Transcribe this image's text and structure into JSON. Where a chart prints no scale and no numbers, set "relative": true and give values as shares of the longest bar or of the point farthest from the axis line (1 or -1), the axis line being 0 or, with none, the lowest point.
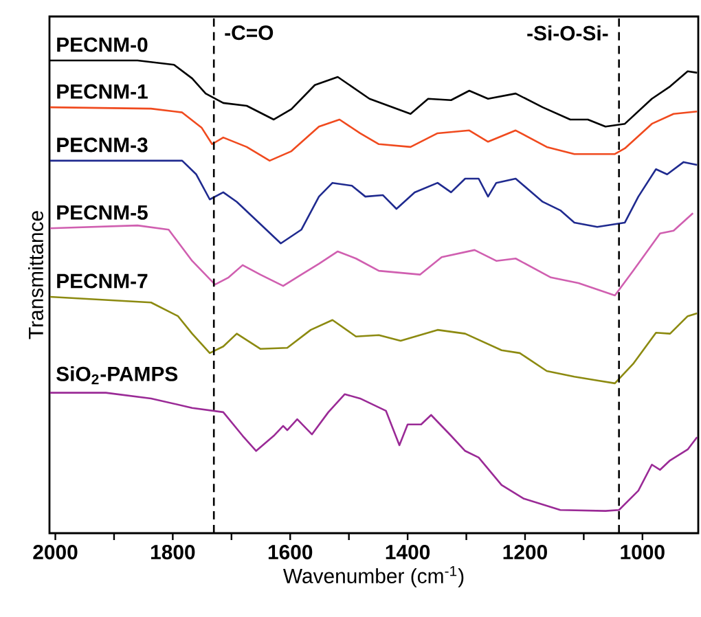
{
  "chart_data": {
    "type": "line",
    "relative": true,
    "xlabel": "Wavenumber (cm$^{-1}$)",
    "ylabel": "Transmittance",
    "xlim": [
      2010,
      905
    ],
    "xticks": [
      2000,
      {
        "value": 1900,
        "label": null
      },
      1800,
      {
        "value": 1700,
        "label": null
      },
      1600,
      {
        "value": 1500,
        "label": null
      },
      1400,
      {
        "value": 1300,
        "label": null
      },
      1200,
      {
        "value": 1100,
        "label": null
      },
      1000
    ],
    "ref_lines": [
      {
        "axis": "x",
        "value": 1730,
        "label": "-C=O",
        "line_style": "dashed",
        "color": "#000000"
      },
      {
        "axis": "x",
        "value": 1040,
        "label": "-Si-O-Si-",
        "line_style": "dashed",
        "color": "#000000"
      }
    ],
    "series": [
      {
        "name": "PECNM-0",
        "color": "#000000",
        "x": [
          2009,
          1860,
          1798,
          1767,
          1744,
          1714,
          1674,
          1628,
          1598,
          1558,
          1519,
          1465,
          1426,
          1395,
          1365,
          1326,
          1295,
          1263,
          1216,
          1170,
          1123,
          1093,
          1063,
          1030,
          984,
          953,
          923,
          907
        ],
        "values": [
          1.0,
          1.0,
          0.991,
          0.962,
          0.93,
          0.91,
          0.904,
          0.875,
          0.897,
          0.948,
          0.965,
          0.919,
          0.901,
          0.887,
          0.919,
          0.916,
          0.936,
          0.919,
          0.93,
          0.901,
          0.875,
          0.875,
          0.86,
          0.866,
          0.919,
          0.945,
          0.977,
          0.974
        ]
      },
      {
        "name": "PECNM-1",
        "color": "#f04a1e",
        "x": [
          2009,
          1837,
          1784,
          1751,
          1733,
          1714,
          1674,
          1635,
          1598,
          1551,
          1516,
          1481,
          1449,
          1395,
          1349,
          1295,
          1263,
          1216,
          1163,
          1116,
          1047,
          1030,
          984,
          947,
          907
        ],
        "values": [
          0.901,
          0.898,
          0.89,
          0.858,
          0.823,
          0.837,
          0.817,
          0.788,
          0.808,
          0.86,
          0.875,
          0.846,
          0.823,
          0.817,
          0.846,
          0.852,
          0.828,
          0.852,
          0.817,
          0.802,
          0.802,
          0.814,
          0.866,
          0.887,
          0.892
        ]
      },
      {
        "name": "PECNM-3",
        "color": "#1f2a8f",
        "x": [
          2009,
          1784,
          1760,
          1737,
          1714,
          1691,
          1651,
          1616,
          1581,
          1551,
          1528,
          1495,
          1472,
          1442,
          1419,
          1388,
          1349,
          1326,
          1302,
          1279,
          1263,
          1249,
          1216,
          1170,
          1140,
          1116,
          1077,
          1030,
          1007,
          977,
          958,
          930,
          907
        ],
        "values": [
          0.788,
          0.788,
          0.759,
          0.706,
          0.721,
          0.701,
          0.654,
          0.613,
          0.642,
          0.712,
          0.741,
          0.735,
          0.712,
          0.715,
          0.686,
          0.721,
          0.741,
          0.721,
          0.75,
          0.75,
          0.712,
          0.741,
          0.75,
          0.701,
          0.683,
          0.657,
          0.648,
          0.657,
          0.712,
          0.77,
          0.759,
          0.785,
          0.779
        ]
      },
      {
        "name": "PECNM-5",
        "color": "#d05fb0",
        "x": [
          2009,
          1860,
          1807,
          1767,
          1728,
          1705,
          1681,
          1651,
          1612,
          1581,
          1551,
          1519,
          1488,
          1449,
          1379,
          1342,
          1286,
          1249,
          1216,
          1156,
          1109,
          1047,
          1016,
          970,
          947,
          914
        ],
        "values": [
          0.645,
          0.651,
          0.642,
          0.576,
          0.526,
          0.541,
          0.567,
          0.547,
          0.523,
          0.547,
          0.57,
          0.596,
          0.581,
          0.555,
          0.547,
          0.584,
          0.599,
          0.576,
          0.581,
          0.541,
          0.529,
          0.503,
          0.555,
          0.634,
          0.64,
          0.677
        ]
      },
      {
        "name": "PECNM-7",
        "color": "#8c8a10",
        "x": [
          2009,
          1837,
          1791,
          1767,
          1737,
          1714,
          1691,
          1651,
          1605,
          1565,
          1528,
          1488,
          1449,
          1412,
          1349,
          1302,
          1240,
          1209,
          1163,
          1116,
          1077,
          1047,
          1016,
          977,
          953,
          923,
          907
        ],
        "values": [
          0.5,
          0.488,
          0.459,
          0.422,
          0.381,
          0.395,
          0.422,
          0.39,
          0.392,
          0.43,
          0.451,
          0.416,
          0.419,
          0.407,
          0.43,
          0.422,
          0.387,
          0.381,
          0.343,
          0.331,
          0.323,
          0.317,
          0.358,
          0.424,
          0.422,
          0.459,
          0.465
        ]
      },
      {
        "name": "SiO$_{2}$-PAMPS",
        "color": "#9a2a96",
        "x": [
          2009,
          1914,
          1837,
          1767,
          1714,
          1681,
          1658,
          1628,
          1612,
          1605,
          1588,
          1563,
          1535,
          1507,
          1481,
          1437,
          1414,
          1400,
          1377,
          1360,
          1326,
          1302,
          1279,
          1240,
          1202,
          1140,
          1063,
          1040,
          1007,
          984,
          970,
          953,
          923,
          907
        ],
        "values": [
          0.297,
          0.297,
          0.285,
          0.265,
          0.256,
          0.206,
          0.174,
          0.206,
          0.227,
          0.218,
          0.241,
          0.209,
          0.256,
          0.294,
          0.285,
          0.259,
          0.186,
          0.23,
          0.23,
          0.25,
          0.206,
          0.174,
          0.16,
          0.102,
          0.073,
          0.049,
          0.047,
          0.049,
          0.09,
          0.145,
          0.134,
          0.154,
          0.177,
          0.203
        ]
      }
    ]
  }
}
